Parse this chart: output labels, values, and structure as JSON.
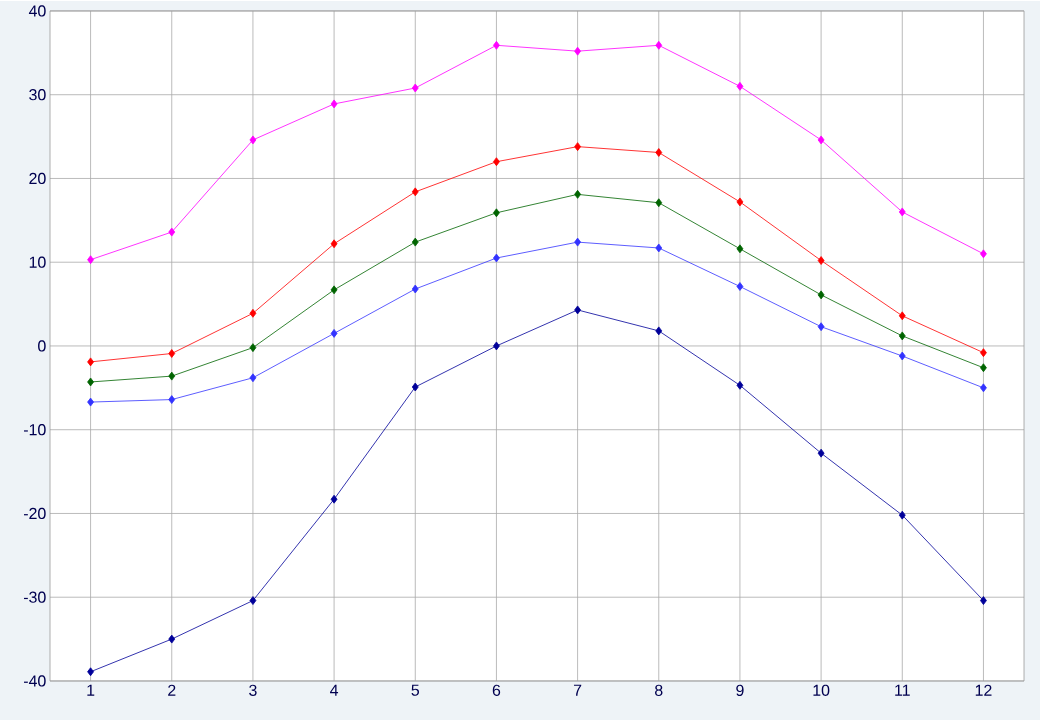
{
  "chart_data": {
    "type": "line",
    "x": [
      1,
      2,
      3,
      4,
      5,
      6,
      7,
      8,
      9,
      10,
      11,
      12
    ],
    "series": [
      {
        "color": "#ff00ff",
        "values": [
          10.3,
          13.6,
          24.6,
          28.9,
          30.8,
          35.9,
          35.2,
          35.9,
          31.0,
          24.6,
          16.0,
          11.0
        ]
      },
      {
        "color": "#ff0000",
        "values": [
          -1.9,
          -0.9,
          3.9,
          12.2,
          18.4,
          22.0,
          23.8,
          23.1,
          17.2,
          10.2,
          3.6,
          -0.8
        ]
      },
      {
        "color": "#006400",
        "values": [
          -4.3,
          -3.6,
          -0.2,
          6.7,
          12.4,
          15.9,
          18.1,
          17.1,
          11.6,
          6.1,
          1.2,
          -2.6
        ]
      },
      {
        "color": "#3333ff",
        "values": [
          -6.7,
          -6.4,
          -3.8,
          1.5,
          6.8,
          10.5,
          12.4,
          11.7,
          7.1,
          2.3,
          -1.2,
          -5.0
        ]
      },
      {
        "color": "#000099",
        "values": [
          -38.9,
          -35.0,
          -30.4,
          -18.3,
          -4.9,
          0.0,
          4.3,
          1.8,
          -4.7,
          -12.8,
          -20.2,
          -30.4
        ]
      }
    ],
    "xlim": [
      0.5,
      12.5
    ],
    "xticks": [
      1,
      2,
      3,
      4,
      5,
      6,
      7,
      8,
      9,
      10,
      11,
      12
    ],
    "ylim": [
      -40,
      40
    ],
    "yticks": [
      -40,
      -30,
      -20,
      -10,
      0,
      10,
      20,
      30,
      40
    ],
    "grid": true,
    "legend": false,
    "marker": "diamond",
    "line_style": "solid"
  }
}
